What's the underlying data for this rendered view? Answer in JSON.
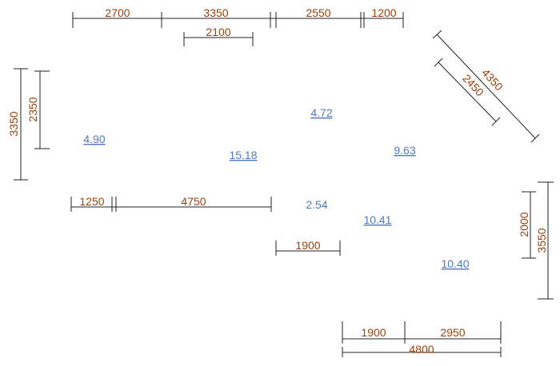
{
  "colors": {
    "dimension_text": "#a0400a",
    "area_text": "#4f79c9",
    "line": "#222222"
  },
  "dimensions": {
    "top_2700": "2700",
    "top_3350": "3350",
    "top_2550": "2550",
    "top_1200": "1200",
    "top_2100": "2100",
    "diag_4350": "4350",
    "diag_2450": "2450",
    "left_3350": "3350",
    "left_2350": "2350",
    "mid_1250": "1250",
    "mid_4750": "4750",
    "mid_1900": "1900",
    "right_2000": "2000",
    "right_3550": "3550",
    "bottom_1900": "1900",
    "bottom_2950": "2950",
    "bottom_4800": "4800"
  },
  "areas": {
    "a1": "4.90",
    "a2": "15.18",
    "a3": "4.72",
    "a4": "9.63",
    "a5": "2.54",
    "a6": "10.41",
    "a7": "10.40"
  }
}
